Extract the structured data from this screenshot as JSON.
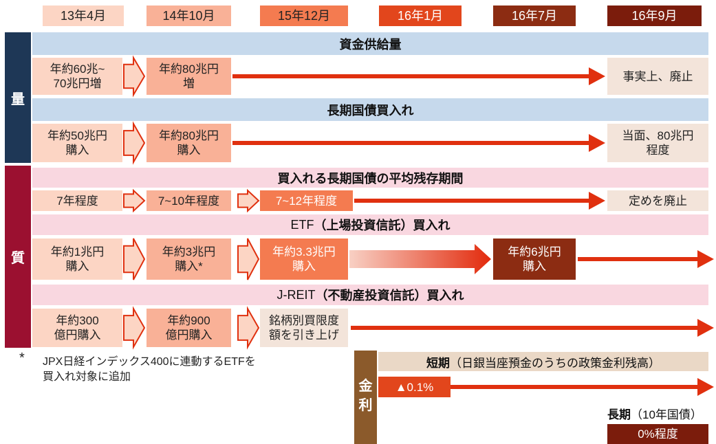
{
  "months": [
    "13年4月",
    "14年10月",
    "15年12月",
    "16年1月",
    "16年7月",
    "16年9月"
  ],
  "quantity_label": "量",
  "quality_label": "質",
  "sections": [
    {
      "title": [
        {
          "text": "資金供給量",
          "bold": true
        }
      ],
      "cells": [
        {
          "lines": [
            "年約60兆~",
            "70兆円増"
          ]
        },
        {
          "lines": [
            "年約80兆円",
            "増"
          ]
        },
        {
          "lines": [
            "事実上、廃止"
          ]
        }
      ]
    },
    {
      "title": [
        {
          "text": "長期国債買入れ",
          "bold": true
        }
      ],
      "cells": [
        {
          "lines": [
            "年約50兆円",
            "購入"
          ]
        },
        {
          "lines": [
            "年約80兆円",
            "購入"
          ]
        },
        {
          "lines": [
            "当面、80兆円",
            "程度"
          ]
        }
      ]
    },
    {
      "title": [
        {
          "text": "買入れる長期国債の平均残存期間",
          "bold": true
        }
      ],
      "cells": [
        {
          "lines": [
            "7年程度"
          ]
        },
        {
          "lines": [
            "7~10年程度"
          ]
        },
        {
          "lines": [
            "7~12年程度"
          ]
        },
        {
          "lines": [
            "定めを廃止"
          ]
        }
      ]
    },
    {
      "title": [
        {
          "text": "ETF",
          "bold": false
        },
        {
          "text": "（上場投資信託）買入れ",
          "bold": true
        }
      ],
      "cells": [
        {
          "lines": [
            "年約1兆円",
            "購入"
          ]
        },
        {
          "lines": [
            "年約3兆円",
            "購入*"
          ]
        },
        {
          "lines": [
            "年約3.3兆円",
            "購入"
          ]
        },
        {
          "lines": [
            "年約6兆円",
            "購入"
          ]
        }
      ]
    },
    {
      "title": [
        {
          "text": "J-REIT",
          "bold": false
        },
        {
          "text": "（不動産投資信託）買入れ",
          "bold": true
        }
      ],
      "cells": [
        {
          "lines": [
            "年約300",
            "億円購入"
          ]
        },
        {
          "lines": [
            "年約900",
            "億円購入"
          ]
        },
        {
          "lines": [
            "銘柄別買限度",
            "額を引き上げ"
          ]
        }
      ]
    }
  ],
  "footnote": {
    "mark": "*",
    "lines": [
      "JPX日経インデックス400に連動するETFを",
      "買入れ対象に追加"
    ]
  },
  "rate_label": [
    "金",
    "利"
  ],
  "short_term": {
    "title": [
      {
        "text": "短期",
        "bold": true
      },
      {
        "text": "（日銀当座預金のうちの政策金利残高）",
        "bold": false
      }
    ],
    "value": "▲0.1%"
  },
  "long_term": {
    "title": [
      {
        "text": "長期",
        "bold": true
      },
      {
        "text": "（10年国債）",
        "bold": false
      }
    ],
    "value": "0%程度"
  }
}
